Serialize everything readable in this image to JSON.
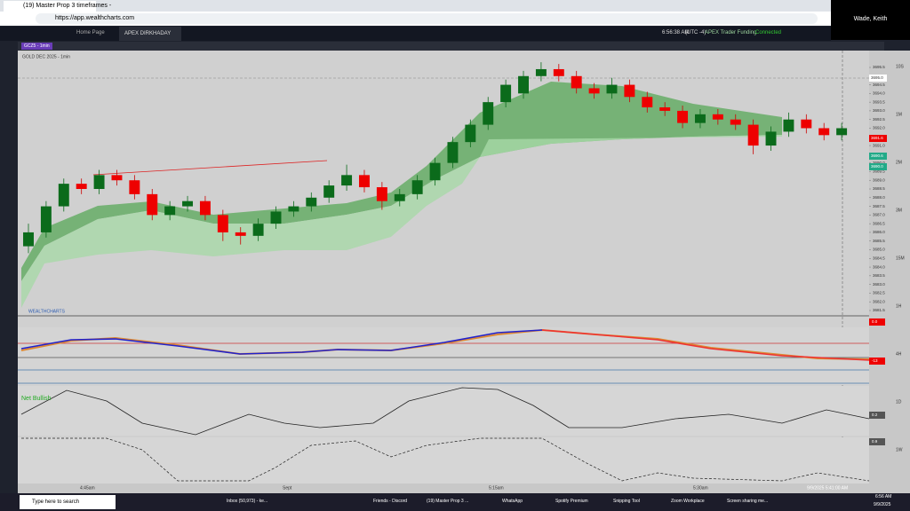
{
  "browser": {
    "tab_title": "(19) Master Prop 3 timeframes -",
    "url": "https://app.wealthcharts.com"
  },
  "app": {
    "tabs": [
      "Home Page",
      "APEX DIRKHADAY"
    ],
    "clock": "6:56:38 AM",
    "timezone": "(UTC -4)",
    "broker": "APEX Trader Funding",
    "status": "Connected",
    "user": "Wade, Keith"
  },
  "chart": {
    "symbol_tab": "GCZ5 - 1min",
    "instrument": "GOLD DEC 2025 - 1min",
    "brand": "WEALTHCHARTS",
    "indicator_label": "Net Bullish",
    "price_tags": [
      "3695.0",
      "3691.6",
      "3690.6",
      "3690.0"
    ],
    "yticks": [
      3695.5,
      {
        "value": 3695,
        "label": "3695.0"
      },
      3694.5,
      {
        "value": 3694,
        "label": "3694.0"
      },
      3693.5,
      {
        "value": 3693,
        "label": "3693.0"
      },
      3692.5,
      {
        "value": 3692,
        "label": "3692.0"
      },
      3691.5,
      {
        "value": 3691,
        "label": "3691.0"
      },
      3690.5,
      {
        "value": 3690,
        "label": "3690.0"
      },
      3689.5,
      {
        "value": 3689,
        "label": "3689.0"
      },
      3688.5,
      {
        "value": 3688,
        "label": "3688.0"
      },
      3687.5,
      {
        "value": 3687,
        "label": "3687.0"
      },
      3686.5,
      {
        "value": 3686,
        "label": "3686.0"
      },
      3685.5,
      {
        "value": 3685,
        "label": "3685.0"
      },
      3684.5,
      {
        "value": 3684,
        "label": "3684.0"
      },
      3683.5,
      {
        "value": 3683,
        "label": "3683.0"
      },
      3682.5,
      {
        "value": 3682,
        "label": "3682.0"
      },
      3681.5
    ],
    "candles": [
      [
        3685.2,
        3686.5,
        3684.8,
        3686.0
      ],
      [
        3686.0,
        3687.8,
        3685.7,
        3687.5
      ],
      [
        3687.5,
        3689.1,
        3687.2,
        3688.8
      ],
      [
        3688.8,
        3689.1,
        3688.2,
        3688.5
      ],
      [
        3688.5,
        3689.6,
        3688.2,
        3689.3
      ],
      [
        3689.3,
        3689.6,
        3688.7,
        3689.0
      ],
      [
        3689.0,
        3689.3,
        3687.9,
        3688.2
      ],
      [
        3688.2,
        3688.5,
        3686.7,
        3687.0
      ],
      [
        3687.0,
        3687.8,
        3686.7,
        3687.5
      ],
      [
        3687.5,
        3688.1,
        3687.2,
        3687.8
      ],
      [
        3687.8,
        3688.1,
        3686.7,
        3687.0
      ],
      [
        3687.0,
        3687.3,
        3685.5,
        3686.0
      ],
      [
        3686.0,
        3686.3,
        3685.3,
        3685.8
      ],
      [
        3685.8,
        3686.8,
        3685.5,
        3686.5
      ],
      [
        3686.5,
        3687.5,
        3686.2,
        3687.2
      ],
      [
        3687.2,
        3687.8,
        3686.9,
        3687.5
      ],
      [
        3687.5,
        3688.3,
        3687.2,
        3688.0
      ],
      [
        3688.0,
        3689.0,
        3687.7,
        3688.7
      ],
      [
        3688.7,
        3689.9,
        3688.4,
        3689.3
      ],
      [
        3689.3,
        3689.6,
        3688.3,
        3688.6
      ],
      [
        3688.6,
        3688.9,
        3687.3,
        3687.8
      ],
      [
        3687.8,
        3688.5,
        3687.5,
        3688.2
      ],
      [
        3688.2,
        3689.3,
        3687.9,
        3689.0
      ],
      [
        3689.0,
        3690.3,
        3688.7,
        3690.0
      ],
      [
        3690.0,
        3691.5,
        3689.7,
        3691.2
      ],
      [
        3691.2,
        3692.5,
        3690.9,
        3692.2
      ],
      [
        3692.2,
        3693.8,
        3691.9,
        3693.5
      ],
      [
        3693.5,
        3694.8,
        3693.2,
        3694.5
      ],
      [
        3694.0,
        3695.3,
        3693.7,
        3695.0
      ],
      [
        3695.0,
        3695.8,
        3694.7,
        3695.4
      ],
      [
        3695.4,
        3695.7,
        3694.7,
        3695.0
      ],
      [
        3695.0,
        3695.3,
        3694.0,
        3694.3
      ],
      [
        3694.3,
        3694.6,
        3693.7,
        3694.0
      ],
      [
        3694.0,
        3694.9,
        3693.7,
        3694.5
      ],
      [
        3694.5,
        3694.8,
        3693.5,
        3693.8
      ],
      [
        3693.8,
        3694.1,
        3692.9,
        3693.2
      ],
      [
        3693.2,
        3693.5,
        3692.7,
        3693.0
      ],
      [
        3693.0,
        3693.3,
        3692.0,
        3692.3
      ],
      [
        3692.3,
        3693.1,
        3692.0,
        3692.8
      ],
      [
        3692.8,
        3693.1,
        3692.2,
        3692.5
      ],
      [
        3692.5,
        3692.8,
        3691.9,
        3692.2
      ],
      [
        3692.2,
        3692.5,
        3690.5,
        3691.0
      ],
      [
        3691.0,
        3692.1,
        3690.7,
        3691.8
      ],
      [
        3691.8,
        3692.9,
        3691.5,
        3692.5
      ],
      [
        3692.5,
        3692.8,
        3691.7,
        3692.0
      ],
      [
        3692.0,
        3692.3,
        3691.3,
        3691.6
      ],
      [
        3691.6,
        3692.3,
        3691.3,
        3692.0
      ]
    ],
    "xticks": [
      "4:45am",
      "Sept",
      "5:15am",
      "5:30am"
    ],
    "cursor_time": "9/9/2025 5:41:00 AM",
    "timeframes": [
      "10S",
      "1M",
      "2M",
      "3M",
      "15M",
      "1H",
      "4H",
      "1D",
      "1W"
    ],
    "indicator_values": [
      "0.0",
      "-13",
      "0.2",
      "0.9"
    ]
  },
  "taskbar": {
    "search": "Type here to search",
    "apps": [
      "Inbox (50,973) - ke...",
      "Friends - Discord",
      "(19) Master Prop 3 ...",
      "WhatsApp",
      "Spotify Premium",
      "Snipping Tool",
      "Zoom Workplace",
      "Screen sharing me..."
    ],
    "time": "6:56 AM",
    "date": "9/9/2025"
  }
}
